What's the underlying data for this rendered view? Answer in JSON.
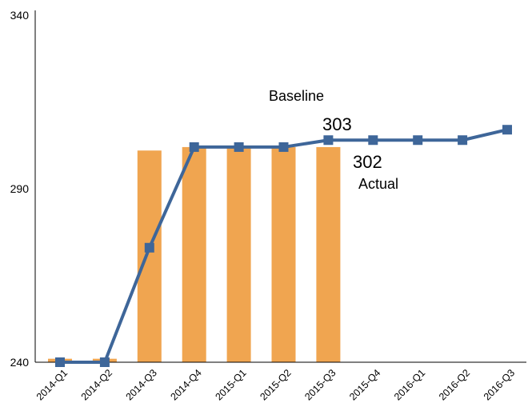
{
  "chart_data": {
    "type": "bar",
    "categories": [
      "2014-Q1",
      "2014-Q2",
      "2014-Q3",
      "2014-Q4",
      "2015-Q1",
      "2015-Q2",
      "2015-Q3",
      "2015-Q4",
      "2016-Q1",
      "2016-Q2",
      "2016-Q3"
    ],
    "ylim": [
      240,
      340
    ],
    "yticks": [
      240,
      290,
      340
    ],
    "title": "",
    "xlabel": "",
    "ylabel": "",
    "series": [
      {
        "name": "Actual",
        "type": "bar",
        "color": "#F0A550",
        "values": [
          241,
          241,
          301,
          302,
          302,
          302,
          302,
          null,
          null,
          null,
          null
        ]
      },
      {
        "name": "Baseline",
        "type": "line",
        "color": "#3E6699",
        "values": [
          240,
          240,
          273,
          302,
          302,
          302,
          304,
          304,
          304,
          304,
          307
        ]
      }
    ],
    "annotations": [
      {
        "text": "Baseline",
        "kind": "label"
      },
      {
        "text": "303",
        "kind": "value"
      },
      {
        "text": "302",
        "kind": "value"
      },
      {
        "text": "Actual",
        "kind": "label"
      }
    ],
    "grid": false,
    "legend": "none"
  }
}
